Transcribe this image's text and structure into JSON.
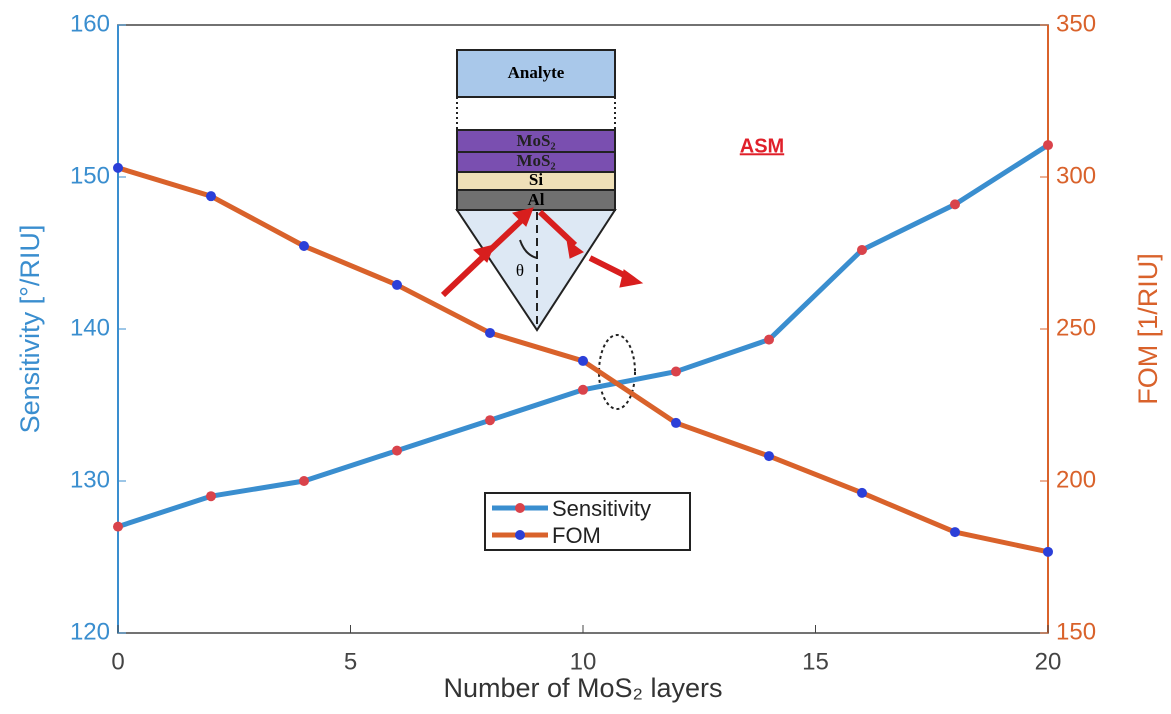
{
  "chart_data": {
    "type": "line",
    "x_label": "Number of MoS₂ layers",
    "y_label": "Sensitivity [°/RIU]",
    "y2_label": "FOM [1/RIU]",
    "annotation": "ASM",
    "diagram": {
      "labels": [
        "Analyte",
        "MoS₂",
        "MoS₂",
        "Si",
        "Al",
        "θ"
      ]
    },
    "x": [
      0,
      2,
      4,
      6,
      8,
      10,
      12,
      14,
      16,
      18,
      20
    ],
    "series": [
      {
        "name": "Sensitivity",
        "color": "#3a8ecf",
        "marker_color": "#d9434b",
        "values": [
          127,
          129,
          130,
          132,
          134,
          136,
          137.2,
          139.3,
          145.2,
          148.2,
          152.1
        ]
      },
      {
        "name": "FOM",
        "color": "#d9622b",
        "marker_color": "#2b3fd8",
        "axis": "y2",
        "values": [
          303,
          293.7,
          277.3,
          264.5,
          248.7,
          239.5,
          219.1,
          208.2,
          196.1,
          183.2,
          176.7
        ]
      }
    ],
    "xlim": [
      0,
      20
    ],
    "xticks": [
      0,
      5,
      10,
      15,
      20
    ],
    "ylim": [
      120,
      160
    ],
    "yticks": [
      120,
      130,
      140,
      150,
      160
    ],
    "y2lim": [
      150,
      350
    ],
    "y2ticks": [
      150,
      200,
      250,
      300,
      350
    ],
    "y_color": "#3a8ecf",
    "y2_color": "#d9622b",
    "grid": false,
    "legend": "lower center"
  }
}
